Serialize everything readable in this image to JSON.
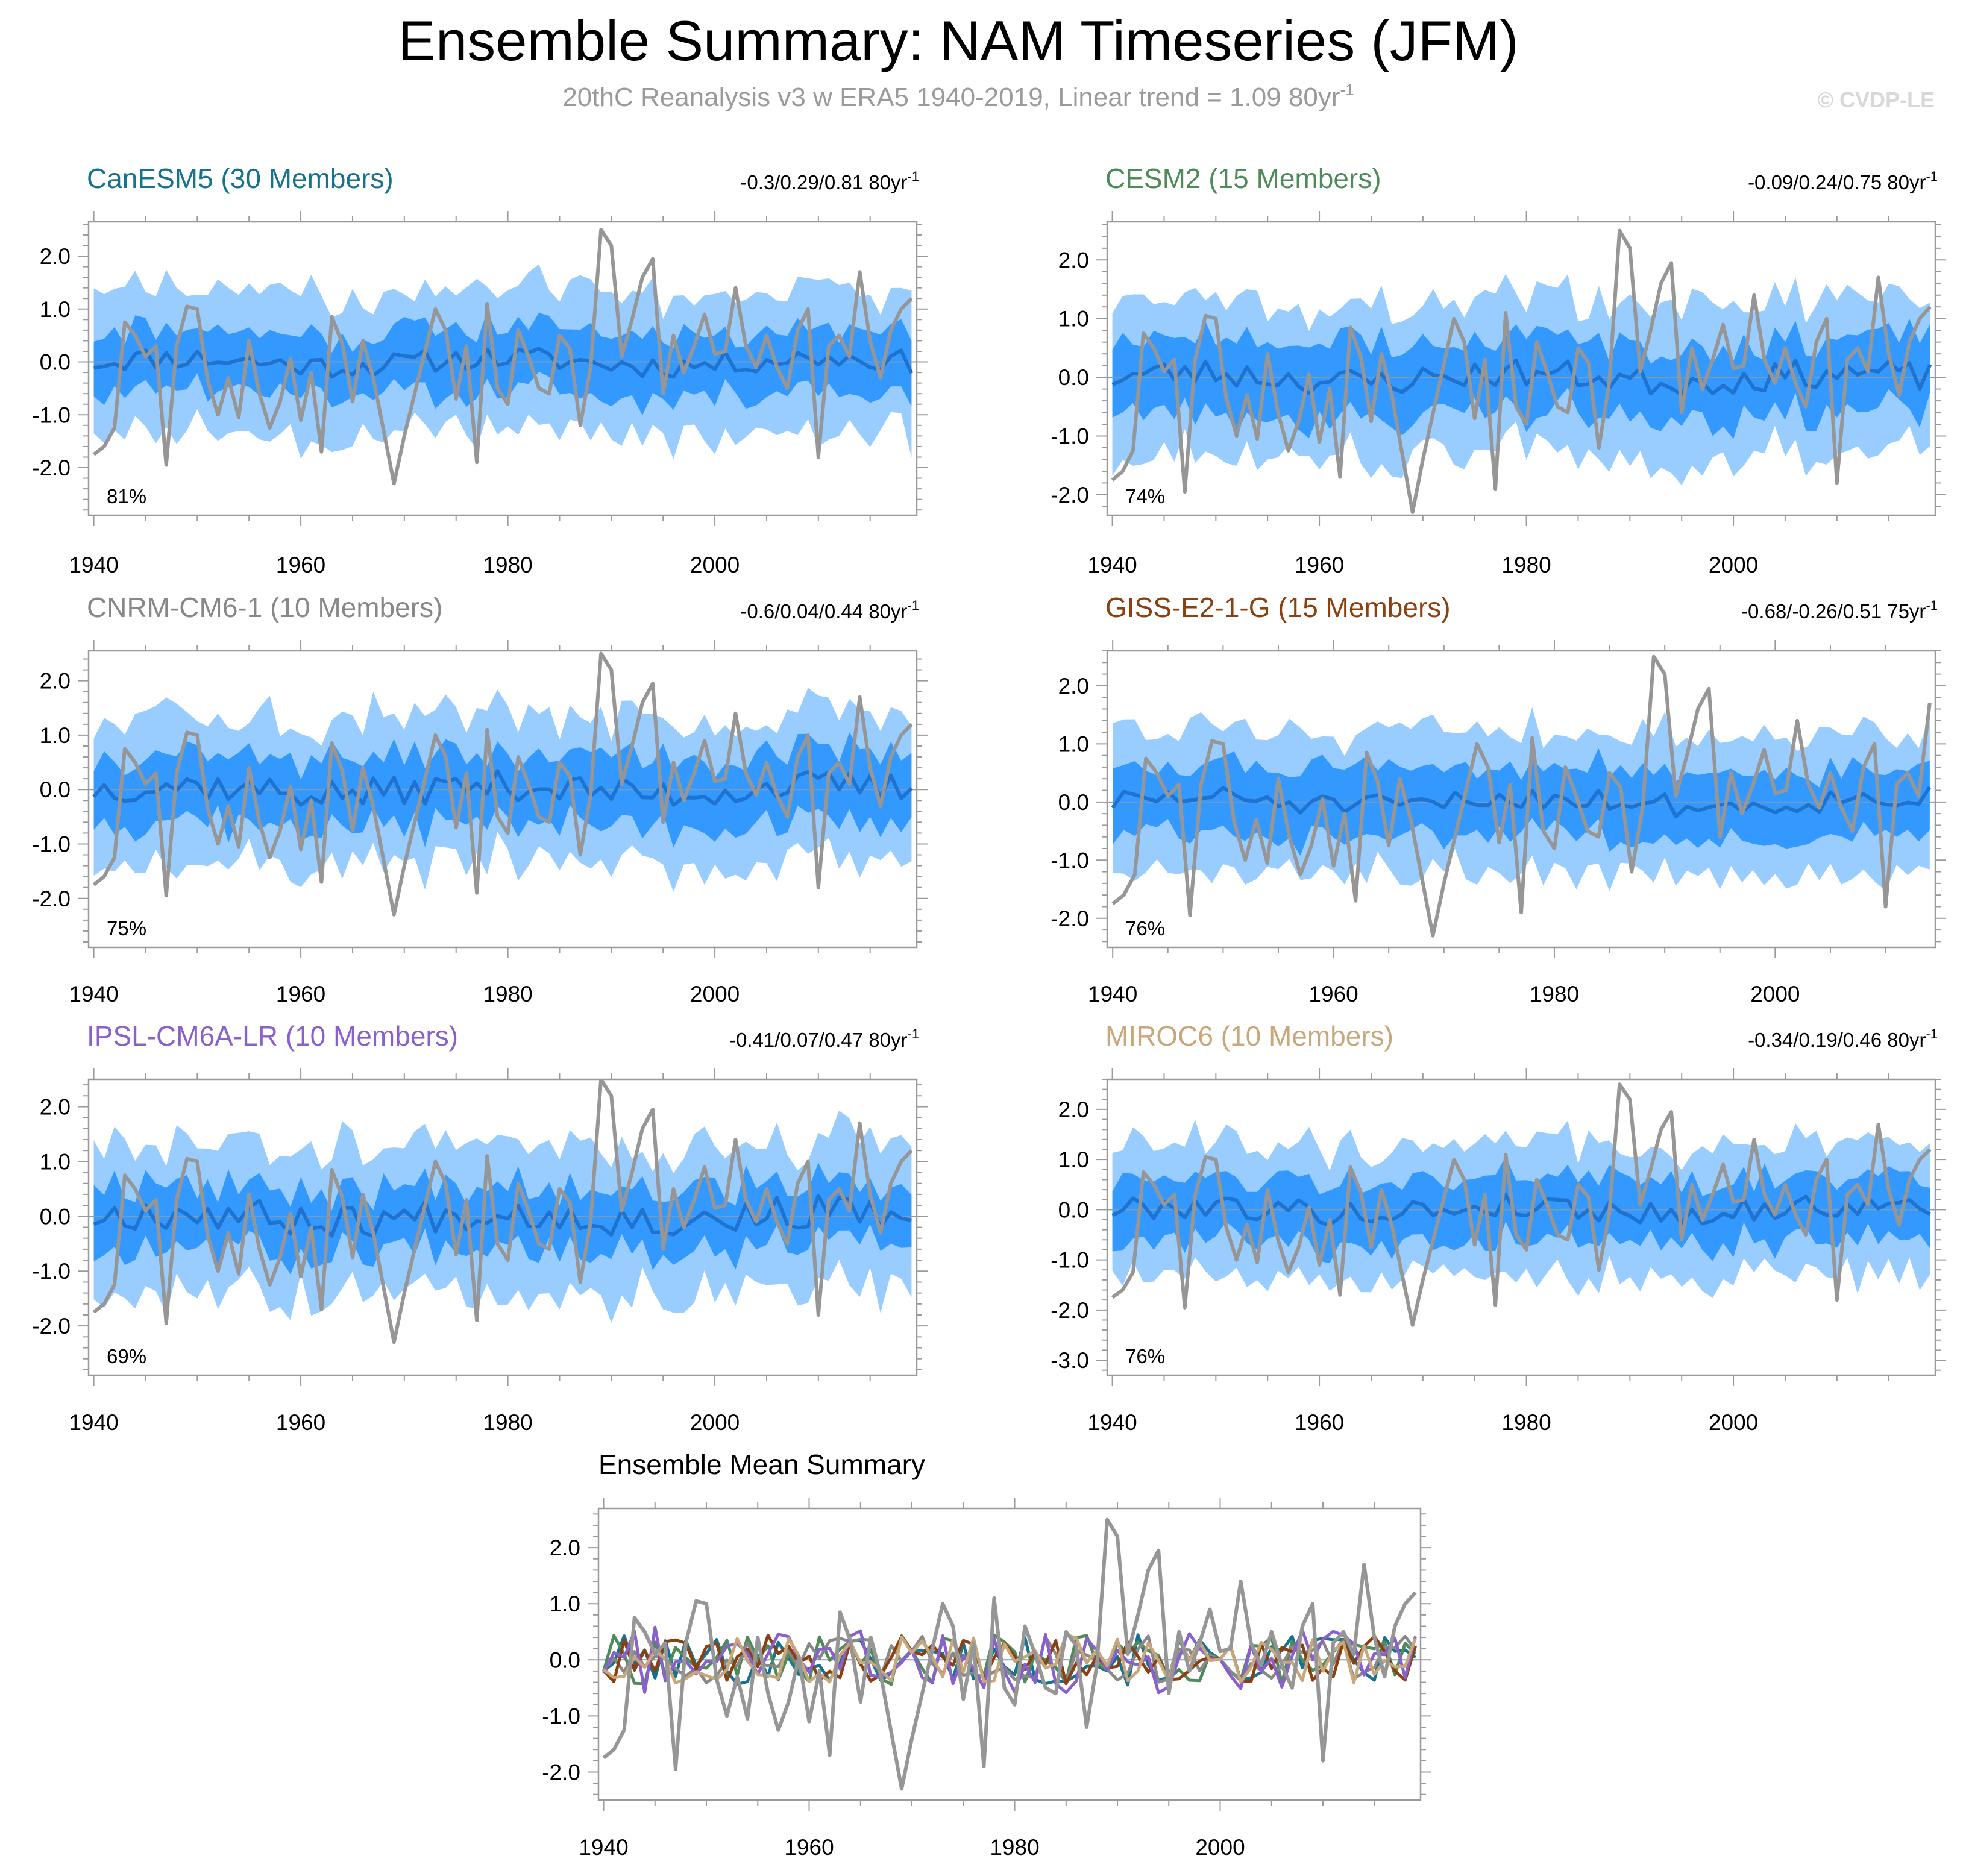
{
  "figure": {
    "title": "Ensemble Summary: NAM Timeseries (JFM)",
    "subtitle": "20thC Reanalysis v3 w ERA5 1940-2019, Linear trend = 1.09 80yr",
    "subtitle_sup": "-1",
    "copyright": "© CVDP-LE"
  },
  "colors": {
    "outer_band": "#99ccff",
    "inner_band": "#3399ff",
    "ensemble_mean": "#1e72d0",
    "observations": "#969696",
    "zero_line": "#7d9bb5",
    "frame": "#9a9a9a"
  },
  "x_ticks": [
    "1940",
    "1960",
    "1980",
    "2000"
  ],
  "chart_data": [
    {
      "type": "area",
      "title": "CanESM5 (30 Members)",
      "title_color": "#17728e",
      "stats": "-0.3/0.29/0.81 80yr",
      "stats_sup": "-1",
      "percent": "81%",
      "x_range": [
        1939.5,
        2019.5
      ],
      "ylim": [
        -2.9,
        2.65
      ],
      "y_ticks": [
        2.0,
        1.0,
        0.0,
        -1.0,
        -2.0
      ],
      "y_tick_labels": [
        "2.0",
        "1.0",
        "0.0",
        "-1.0",
        "-2.0"
      ],
      "seed": 11,
      "mean_amp": 0.2,
      "inner_half": 0.55,
      "outer_half": 1.3,
      "end_year": 2019
    },
    {
      "type": "area",
      "title": "CESM2 (15 Members)",
      "title_color": "#4f8a5a",
      "stats": "-0.09/0.24/0.75 80yr",
      "stats_sup": "-1",
      "percent": "74%",
      "x_range": [
        1939.5,
        2019.5
      ],
      "ylim": [
        -2.35,
        2.65
      ],
      "y_ticks": [
        2.0,
        1.0,
        0.0,
        -1.0,
        -2.0
      ],
      "y_tick_labels": [
        "2.0",
        "1.0",
        "0.0",
        "-1.0",
        "-2.0"
      ],
      "seed": 23,
      "mean_amp": 0.22,
      "inner_half": 0.6,
      "outer_half": 1.3,
      "end_year": 2019
    },
    {
      "type": "area",
      "title": "CNRM-CM6-1 (10 Members)",
      "title_color": "#888888",
      "stats": "-0.6/0.04/0.44 80yr",
      "stats_sup": "-1",
      "percent": "75%",
      "x_range": [
        1939.5,
        2019.5
      ],
      "ylim": [
        -2.9,
        2.55
      ],
      "y_ticks": [
        2.0,
        1.0,
        0.0,
        -1.0,
        -2.0
      ],
      "y_tick_labels": [
        "2.0",
        "1.0",
        "0.0",
        "-1.0",
        "-2.0"
      ],
      "seed": 37,
      "mean_amp": 0.25,
      "inner_half": 0.6,
      "outer_half": 1.3,
      "end_year": 2019
    },
    {
      "type": "area",
      "title": "GISS-E2-1-G (15 Members)",
      "title_color": "#8a4010",
      "stats": "-0.68/-0.26/0.51 75yr",
      "stats_sup": "-1",
      "percent": "76%",
      "x_range": [
        1939.5,
        2014.5
      ],
      "ylim": [
        -2.5,
        2.6
      ],
      "y_ticks": [
        2.0,
        1.0,
        0.0,
        -1.0,
        -2.0
      ],
      "y_tick_labels": [
        "2.0",
        "1.0",
        "0.0",
        "-1.0",
        "-2.0"
      ],
      "seed": 51,
      "mean_amp": 0.18,
      "inner_half": 0.55,
      "outer_half": 1.2,
      "end_year": 2014
    },
    {
      "type": "area",
      "title": "IPSL-CM6A-LR (10 Members)",
      "title_color": "#8a60cc",
      "stats": "-0.41/0.07/0.47 80yr",
      "stats_sup": "-1",
      "percent": "69%",
      "x_range": [
        1939.5,
        2019.5
      ],
      "ylim": [
        -2.9,
        2.5
      ],
      "y_ticks": [
        2.0,
        1.0,
        0.0,
        -1.0,
        -2.0
      ],
      "y_tick_labels": [
        "2.0",
        "1.0",
        "0.0",
        "-1.0",
        "-2.0"
      ],
      "seed": 67,
      "mean_amp": 0.28,
      "inner_half": 0.55,
      "outer_half": 1.3,
      "end_year": 2019
    },
    {
      "type": "area",
      "title": "MIROC6 (10 Members)",
      "title_color": "#c8a77a",
      "stats": "-0.34/0.19/0.46 80yr",
      "stats_sup": "-1",
      "percent": "76%",
      "x_range": [
        1939.5,
        2019.5
      ],
      "ylim": [
        -3.3,
        2.6
      ],
      "y_ticks": [
        2.0,
        1.0,
        0.0,
        -1.0,
        -2.0,
        -3.0
      ],
      "y_tick_labels": [
        "2.0",
        "1.0",
        "0.0",
        "-1.0",
        "-2.0",
        "-3.0"
      ],
      "seed": 79,
      "mean_amp": 0.22,
      "inner_half": 0.6,
      "outer_half": 1.3,
      "end_year": 2019
    },
    {
      "type": "line",
      "title": "Ensemble Mean Summary",
      "title_color": "#000000",
      "x_range": [
        1939.5,
        2019.5
      ],
      "ylim": [
        -2.5,
        2.7
      ],
      "y_ticks": [
        2.0,
        1.0,
        0.0,
        -1.0,
        -2.0
      ],
      "y_tick_labels": [
        "2.0",
        "1.0",
        "0.0",
        "-1.0",
        "-2.0"
      ],
      "series_colors": [
        "#17728e",
        "#4f8a5a",
        "#888888",
        "#8a4010",
        "#8a60cc",
        "#c8a77a"
      ]
    }
  ],
  "observations": {
    "name": "20thC Reanalysis v3 w ERA5",
    "start_year": 1940,
    "values": [
      -1.75,
      -1.6,
      -1.25,
      0.75,
      0.5,
      0.1,
      0.3,
      -1.95,
      0.3,
      1.05,
      1.0,
      -0.35,
      -1.0,
      -0.3,
      -1.05,
      0.4,
      -0.6,
      -1.25,
      -0.75,
      0.05,
      -1.1,
      -0.2,
      -1.7,
      0.85,
      0.35,
      -0.75,
      0.4,
      -0.3,
      -1.3,
      -2.3,
      -1.4,
      -0.6,
      0.2,
      1.0,
      0.6,
      -0.7,
      0.3,
      -1.9,
      1.1,
      -0.5,
      -0.8,
      0.6,
      0.1,
      -0.5,
      -0.6,
      0.5,
      0.25,
      -1.2,
      -0.1,
      2.5,
      2.2,
      0.1,
      0.8,
      1.6,
      1.95,
      -0.6,
      0.5,
      -0.2,
      0.3,
      0.9,
      0.15,
      0.2,
      1.4,
      0.3,
      -0.1,
      0.5,
      -0.1,
      -0.5,
      0.6,
      1.0,
      -1.8,
      0.3,
      0.5,
      0.1,
      1.7,
      0.4,
      -0.3,
      0.6,
      1.0,
      1.2
    ]
  }
}
